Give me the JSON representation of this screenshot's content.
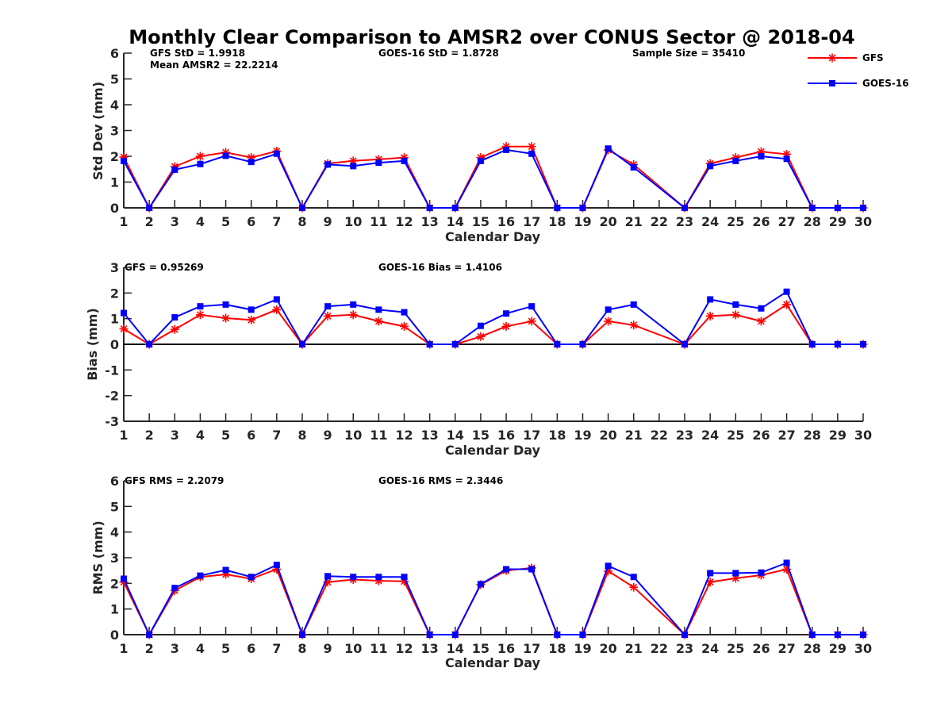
{
  "figure": {
    "title": "Monthly Clear Comparison to AMSR2 over CONUS Sector @ 2018-04"
  },
  "legend": {
    "placement": "top-right",
    "entries": [
      {
        "name": "GFS",
        "color": "#ff0000",
        "marker": "asterisk"
      },
      {
        "name": "GOES-16",
        "color": "#0000ff",
        "marker": "square"
      }
    ]
  },
  "chart_data": [
    {
      "type": "line",
      "id": "std",
      "title": "",
      "xlabel": "Calendar Day",
      "ylabel": "Std Dev (mm)",
      "xlim": [
        1,
        30
      ],
      "ylim": [
        0,
        6
      ],
      "grid": false,
      "x_ticks": [
        "1",
        "2",
        "3",
        "4",
        "5",
        "6",
        "7",
        "8",
        "9",
        "10",
        "11",
        "12",
        "13",
        "14",
        "15",
        "16",
        "17",
        "18",
        "19",
        "20",
        "21",
        "22",
        "23",
        "24",
        "25",
        "26",
        "27",
        "28",
        "29",
        "30"
      ],
      "y_ticks": [
        "0",
        "1",
        "2",
        "3",
        "4",
        "5",
        "6"
      ],
      "annotations": [
        {
          "text": "GFS StD = 1.9918",
          "position": "top-left"
        },
        {
          "text": "Mean AMSR2 = 22.2214",
          "position": "top-left-second-line"
        },
        {
          "text": "GOES-16 StD = 1.8728",
          "position": "top-center"
        },
        {
          "text": "Sample Size = 35410",
          "position": "top-right"
        }
      ],
      "x": [
        1,
        2,
        3,
        4,
        5,
        6,
        7,
        8,
        9,
        10,
        11,
        12,
        13,
        14,
        15,
        16,
        17,
        18,
        19,
        20,
        21,
        23,
        24,
        25,
        26,
        27,
        28,
        29,
        30
      ],
      "series": [
        {
          "name": "GFS",
          "color": "#ff0000",
          "values": [
            1.97,
            0,
            1.6,
            2.0,
            2.15,
            1.95,
            2.2,
            0,
            1.72,
            1.82,
            1.88,
            1.95,
            0,
            0,
            1.95,
            2.38,
            2.38,
            0,
            0,
            2.25,
            1.68,
            0,
            1.72,
            1.95,
            2.18,
            2.08,
            0,
            0,
            0
          ]
        },
        {
          "name": "GOES-16",
          "color": "#0000ff",
          "values": [
            1.82,
            0,
            1.48,
            1.7,
            2.02,
            1.78,
            2.1,
            0,
            1.68,
            1.62,
            1.75,
            1.82,
            0,
            0,
            1.82,
            2.25,
            2.1,
            0,
            0,
            2.3,
            1.57,
            0,
            1.62,
            1.82,
            2.0,
            1.9,
            0,
            0,
            0
          ]
        }
      ]
    },
    {
      "type": "line",
      "id": "bias",
      "title": "",
      "xlabel": "Calendar Day",
      "ylabel": "Bias (mm)",
      "xlim": [
        1,
        30
      ],
      "ylim": [
        -3,
        3
      ],
      "grid": false,
      "zero_line": true,
      "x_ticks": [
        "1",
        "2",
        "3",
        "4",
        "5",
        "6",
        "7",
        "8",
        "9",
        "10",
        "11",
        "12",
        "13",
        "14",
        "15",
        "16",
        "17",
        "18",
        "19",
        "20",
        "21",
        "22",
        "23",
        "24",
        "25",
        "26",
        "27",
        "28",
        "29",
        "30"
      ],
      "y_ticks": [
        "-3",
        "-2",
        "-1",
        "0",
        "1",
        "2",
        "3"
      ],
      "annotations": [
        {
          "text": "GFS = 0.95269",
          "position": "top-left"
        },
        {
          "text": "GOES-16 Bias = 1.4106",
          "position": "top-center"
        }
      ],
      "x": [
        1,
        2,
        3,
        4,
        5,
        6,
        7,
        8,
        9,
        10,
        11,
        12,
        13,
        14,
        15,
        16,
        17,
        18,
        19,
        20,
        21,
        23,
        24,
        25,
        26,
        27,
        28,
        29,
        30
      ],
      "series": [
        {
          "name": "GFS",
          "color": "#ff0000",
          "values": [
            0.6,
            0,
            0.58,
            1.15,
            1.02,
            0.95,
            1.35,
            0,
            1.1,
            1.15,
            0.9,
            0.7,
            0,
            0,
            0.3,
            0.7,
            0.9,
            0,
            0,
            0.9,
            0.75,
            0,
            1.1,
            1.15,
            0.9,
            1.55,
            0,
            0,
            0
          ]
        },
        {
          "name": "GOES-16",
          "color": "#0000ff",
          "values": [
            1.22,
            0,
            1.05,
            1.48,
            1.55,
            1.35,
            1.75,
            0,
            1.48,
            1.55,
            1.35,
            1.25,
            0,
            0,
            0.72,
            1.2,
            1.48,
            0,
            0,
            1.35,
            1.55,
            0,
            1.75,
            1.55,
            1.4,
            2.05,
            0,
            0,
            0
          ]
        }
      ]
    },
    {
      "type": "line",
      "id": "rms",
      "title": "",
      "xlabel": "Calendar Day",
      "ylabel": "RMS (mm)",
      "xlim": [
        1,
        30
      ],
      "ylim": [
        0,
        6
      ],
      "grid": false,
      "x_ticks": [
        "1",
        "2",
        "3",
        "4",
        "5",
        "6",
        "7",
        "8",
        "9",
        "10",
        "11",
        "12",
        "13",
        "14",
        "15",
        "16",
        "17",
        "18",
        "19",
        "20",
        "21",
        "22",
        "23",
        "24",
        "25",
        "26",
        "27",
        "28",
        "29",
        "30"
      ],
      "y_ticks": [
        "0",
        "1",
        "2",
        "3",
        "4",
        "5",
        "6"
      ],
      "annotations": [
        {
          "text": "GFS RMS = 2.2079",
          "position": "top-left"
        },
        {
          "text": "GOES-16 RMS = 2.3446",
          "position": "top-center"
        }
      ],
      "x": [
        1,
        2,
        3,
        4,
        5,
        6,
        7,
        8,
        9,
        10,
        11,
        12,
        13,
        14,
        15,
        16,
        17,
        18,
        19,
        20,
        21,
        23,
        24,
        25,
        26,
        27,
        28,
        29,
        30
      ],
      "series": [
        {
          "name": "GFS",
          "color": "#ff0000",
          "values": [
            2.05,
            0,
            1.72,
            2.25,
            2.35,
            2.18,
            2.55,
            0,
            2.05,
            2.15,
            2.1,
            2.08,
            0,
            0,
            1.95,
            2.5,
            2.6,
            0,
            0,
            2.48,
            1.85,
            0,
            2.05,
            2.2,
            2.32,
            2.55,
            0,
            0,
            0
          ]
        },
        {
          "name": "GOES-16",
          "color": "#0000ff",
          "values": [
            2.18,
            0,
            1.82,
            2.3,
            2.52,
            2.25,
            2.72,
            0,
            2.28,
            2.25,
            2.25,
            2.25,
            0,
            0,
            1.97,
            2.55,
            2.55,
            0,
            0,
            2.68,
            2.25,
            0,
            2.4,
            2.4,
            2.42,
            2.8,
            0,
            0,
            0
          ]
        }
      ]
    }
  ]
}
